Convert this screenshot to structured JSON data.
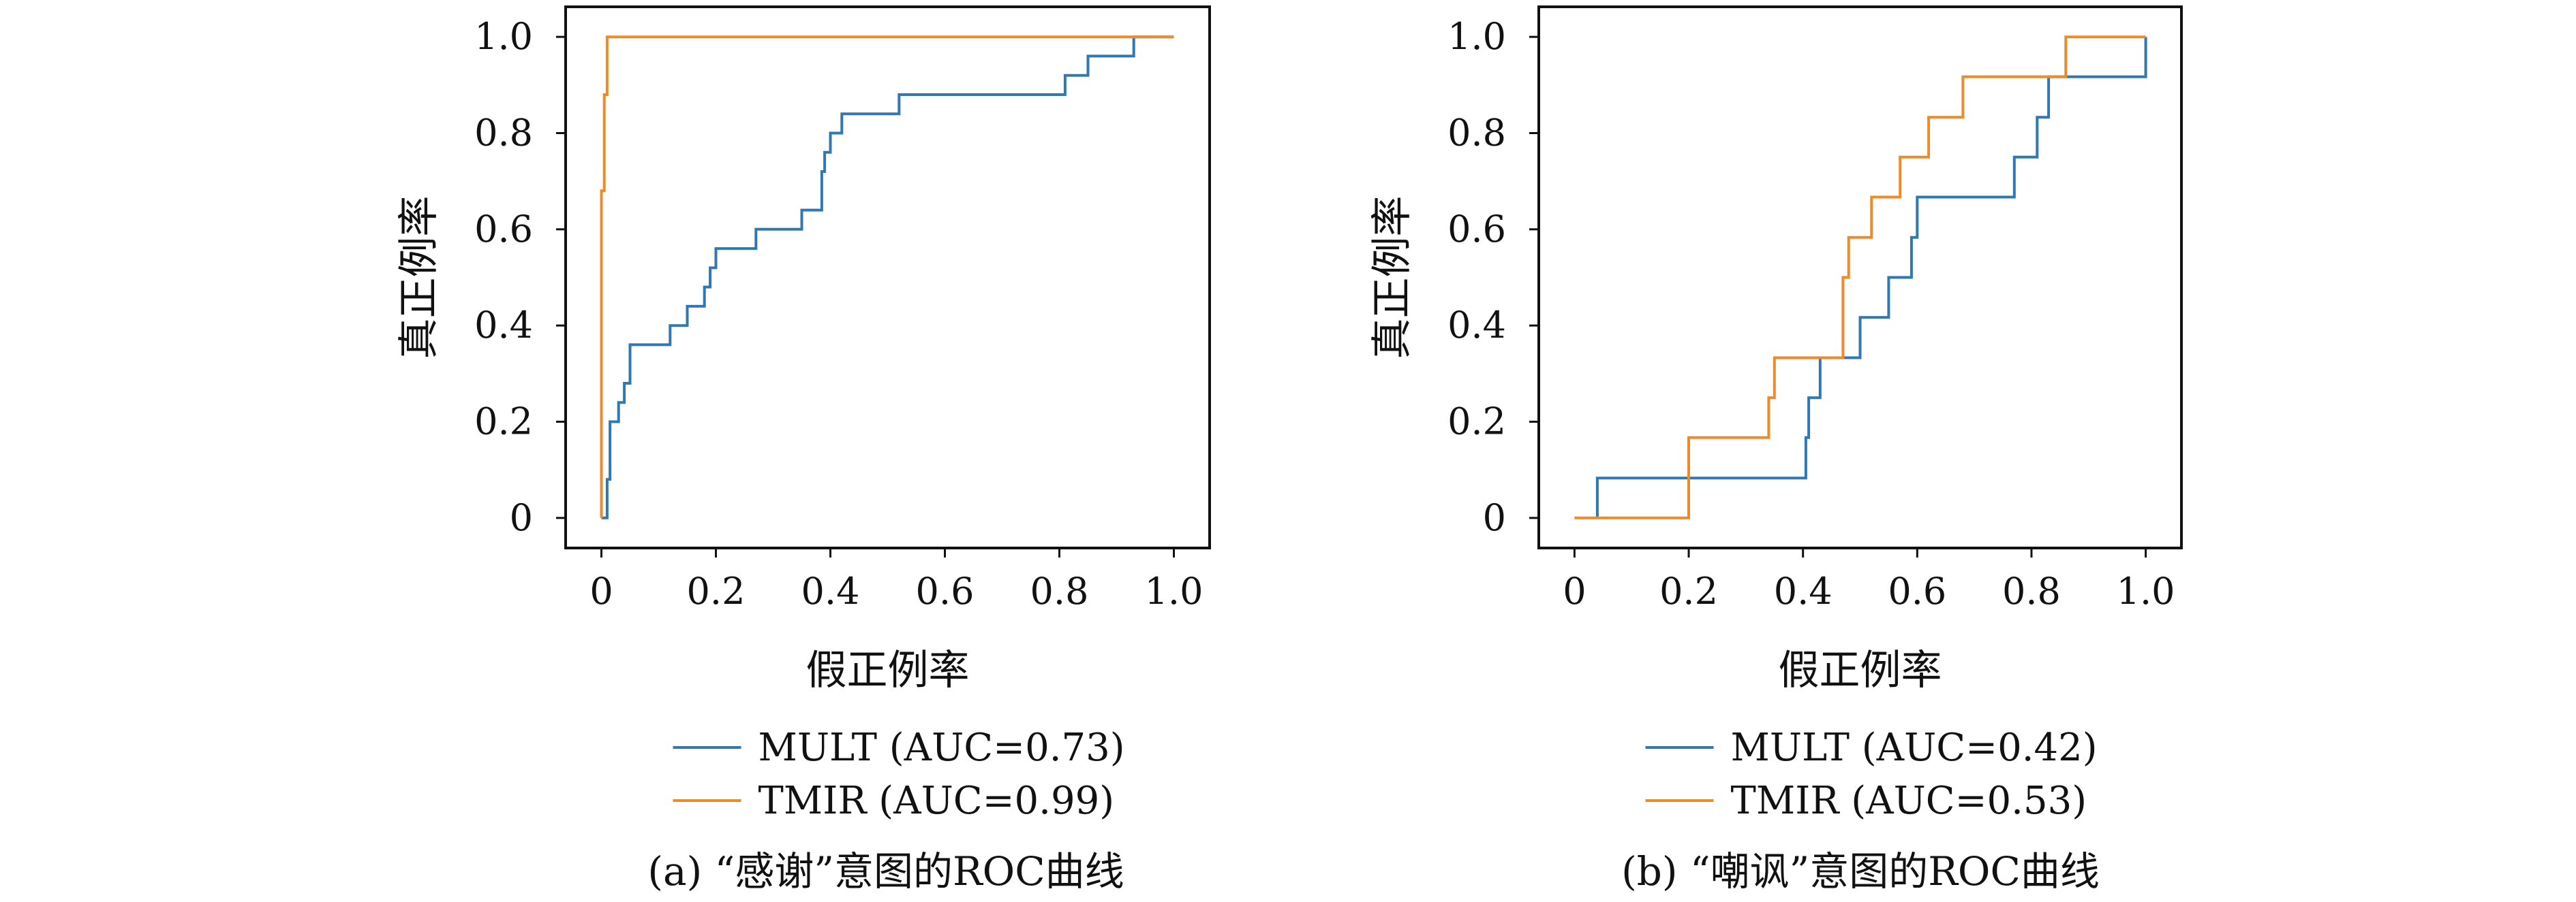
{
  "colors": {
    "mult": "#2f78b4",
    "tmir": "#f08a28",
    "axis": "#111111"
  },
  "chart_data": [
    {
      "type": "line",
      "subtype": "roc-step",
      "caption": "(a) “感谢”意图的ROC曲线",
      "xlabel": "假正例率",
      "ylabel": "真正例率",
      "xlim": [
        0,
        1
      ],
      "ylim": [
        0,
        1
      ],
      "xticks": [
        "0",
        "0.2",
        "0.4",
        "0.6",
        "0.8",
        "1.0"
      ],
      "yticks": [
        "0",
        "0.2",
        "0.4",
        "0.6",
        "0.8",
        "1.0"
      ],
      "grid": false,
      "legend_position": "bottom",
      "series": [
        {
          "name": "MULT (AUC=0.73)",
          "color_key": "mult",
          "x": [
            0.0,
            0.01,
            0.01,
            0.015,
            0.015,
            0.03,
            0.03,
            0.04,
            0.04,
            0.05,
            0.05,
            0.12,
            0.12,
            0.15,
            0.15,
            0.18,
            0.18,
            0.19,
            0.19,
            0.2,
            0.2,
            0.27,
            0.27,
            0.35,
            0.35,
            0.385,
            0.385,
            0.39,
            0.39,
            0.4,
            0.4,
            0.42,
            0.42,
            0.52,
            0.52,
            0.81,
            0.81,
            0.85,
            0.85,
            0.93,
            0.93,
            1.0
          ],
          "y": [
            0.0,
            0.0,
            0.08,
            0.08,
            0.2,
            0.2,
            0.24,
            0.24,
            0.28,
            0.28,
            0.36,
            0.36,
            0.4,
            0.4,
            0.44,
            0.44,
            0.48,
            0.48,
            0.52,
            0.52,
            0.56,
            0.56,
            0.6,
            0.6,
            0.64,
            0.64,
            0.72,
            0.72,
            0.76,
            0.76,
            0.8,
            0.8,
            0.84,
            0.84,
            0.88,
            0.88,
            0.92,
            0.92,
            0.96,
            0.96,
            1.0,
            1.0
          ]
        },
        {
          "name": "TMIR (AUC=0.99)",
          "color_key": "tmir",
          "x": [
            0.0,
            0.0,
            0.005,
            0.005,
            0.01,
            0.01,
            1.0
          ],
          "y": [
            0.0,
            0.68,
            0.68,
            0.88,
            0.88,
            1.0,
            1.0
          ]
        }
      ]
    },
    {
      "type": "line",
      "subtype": "roc-step",
      "caption": "(b) “嘲讽”意图的ROC曲线",
      "xlabel": "假正例率",
      "ylabel": "真正例率",
      "xlim": [
        0,
        1
      ],
      "ylim": [
        0,
        1
      ],
      "xticks": [
        "0",
        "0.2",
        "0.4",
        "0.6",
        "0.8",
        "1.0"
      ],
      "yticks": [
        "0",
        "0.2",
        "0.4",
        "0.6",
        "0.8",
        "1.0"
      ],
      "grid": false,
      "legend_position": "bottom",
      "series": [
        {
          "name": "MULT (AUC=0.42)",
          "color_key": "mult",
          "x": [
            0.04,
            0.04,
            0.405,
            0.405,
            0.41,
            0.41,
            0.43,
            0.43,
            0.5,
            0.5,
            0.55,
            0.55,
            0.59,
            0.59,
            0.6,
            0.6,
            0.77,
            0.77,
            0.81,
            0.81,
            0.83,
            0.83,
            1.0,
            1.0
          ],
          "y": [
            0.0,
            0.083,
            0.083,
            0.167,
            0.167,
            0.25,
            0.25,
            0.333,
            0.333,
            0.417,
            0.417,
            0.5,
            0.5,
            0.583,
            0.583,
            0.667,
            0.667,
            0.75,
            0.75,
            0.833,
            0.833,
            0.917,
            0.917,
            1.0
          ]
        },
        {
          "name": "TMIR (AUC=0.53)",
          "color_key": "tmir",
          "x": [
            0.0,
            0.2,
            0.2,
            0.34,
            0.34,
            0.35,
            0.35,
            0.47,
            0.47,
            0.48,
            0.48,
            0.52,
            0.52,
            0.57,
            0.57,
            0.62,
            0.62,
            0.68,
            0.68,
            0.86,
            0.86,
            1.0
          ],
          "y": [
            0.0,
            0.0,
            0.167,
            0.167,
            0.25,
            0.25,
            0.333,
            0.333,
            0.5,
            0.5,
            0.583,
            0.583,
            0.667,
            0.667,
            0.75,
            0.75,
            0.833,
            0.833,
            0.917,
            0.917,
            1.0,
            1.0
          ]
        }
      ]
    }
  ]
}
